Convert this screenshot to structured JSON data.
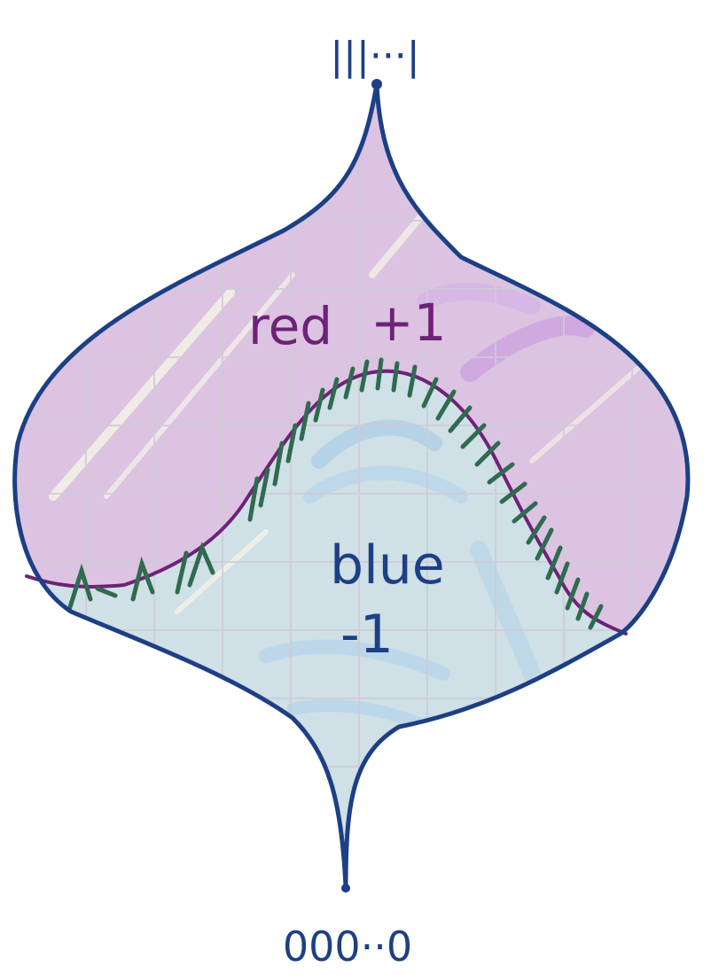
{
  "labels": {
    "top_vertex": "|||···|",
    "bottom_vertex": "000··0",
    "red_region": "red",
    "red_value": "+1",
    "blue_region": "blue",
    "blue_value": "-1"
  },
  "colors": {
    "outline": "#1d3f85",
    "boundary_curve": "#6e2277",
    "hatch": "#2f6b4f",
    "red_fill": "#d9bfe0",
    "blue_fill": "#c7dde9",
    "paper": "#f7f5e8",
    "grid": "#cfcbd6"
  }
}
